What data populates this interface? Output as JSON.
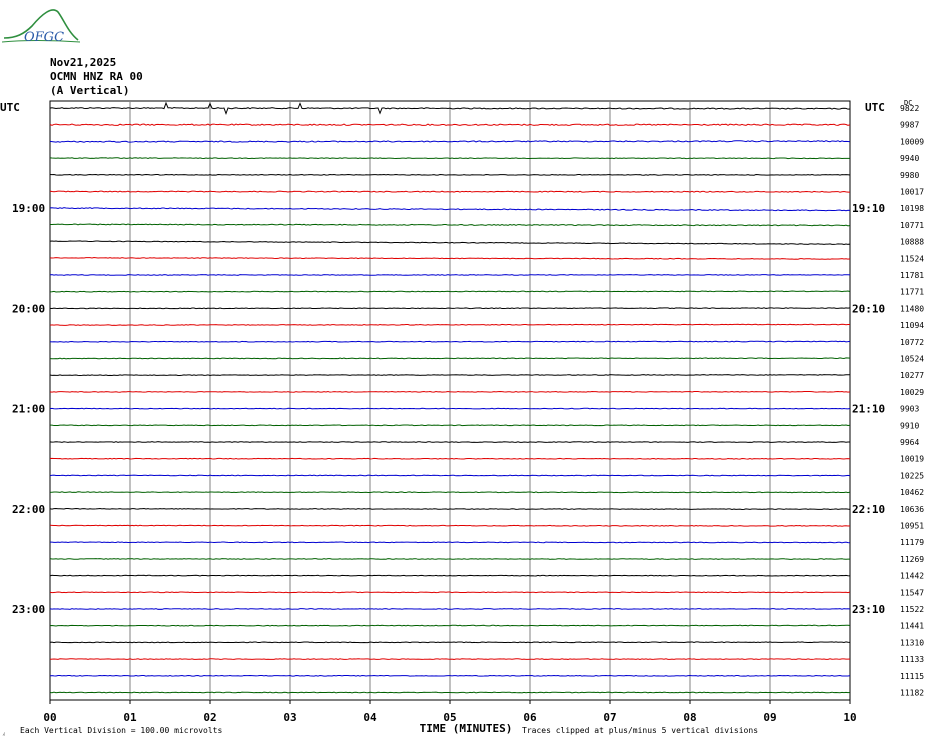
{
  "header": {
    "date": "Nov21,2025",
    "station": "OCMN HNZ RA 00",
    "component": "(A Vertical)"
  },
  "logo": {
    "text": "OFGC",
    "icon": "hill-wave-logo-icon"
  },
  "footer": {
    "scale_note": "Each Vertical Division =  100.00 microvolts",
    "clip_note": "Traces clipped at plus/minus 5 vertical divisions"
  },
  "chart_data": {
    "type": "line",
    "title": "",
    "xlabel": "TIME (MINUTES)",
    "left_axis_label": "UTC",
    "right_axis_label": "UTC",
    "dc_label": "DC",
    "x_ticks": [
      "00",
      "01",
      "02",
      "03",
      "04",
      "05",
      "06",
      "07",
      "08",
      "09",
      "10"
    ],
    "xlim": [
      0,
      10
    ],
    "left_time_labels": [
      {
        "row": 6,
        "label": "19:00"
      },
      {
        "row": 12,
        "label": "20:00"
      },
      {
        "row": 18,
        "label": "21:00"
      },
      {
        "row": 24,
        "label": "22:00"
      },
      {
        "row": 30,
        "label": "23:00"
      }
    ],
    "right_time_labels": [
      {
        "row": 6,
        "label": "19:10"
      },
      {
        "row": 12,
        "label": "20:10"
      },
      {
        "row": 18,
        "label": "21:10"
      },
      {
        "row": 24,
        "label": "22:10"
      },
      {
        "row": 30,
        "label": "23:10"
      }
    ],
    "trace_colors": [
      "#000000",
      "#e00000",
      "#0000d0",
      "#006000"
    ],
    "traces": [
      {
        "dc": "9822",
        "start": 0.0,
        "end": 0.7,
        "noise": 0.25
      },
      {
        "dc": "9987",
        "start": 0.0,
        "end": 0.1,
        "noise": 0.3
      },
      {
        "dc": "10009",
        "start": 0.3,
        "end": -0.2,
        "noise": 0.25
      },
      {
        "dc": "9940",
        "start": 0.0,
        "end": 0.2,
        "noise": 0.15
      },
      {
        "dc": "9980",
        "start": 0.0,
        "end": 0.1,
        "noise": 0.15
      },
      {
        "dc": "10017",
        "start": 0.0,
        "end": 0.3,
        "noise": 0.2
      },
      {
        "dc": "10198",
        "start": -0.2,
        "end": 2.2,
        "noise": 0.2
      },
      {
        "dc": "10771",
        "start": -0.5,
        "end": 0.5,
        "noise": 0.2
      },
      {
        "dc": "10888",
        "start": -0.5,
        "end": 2.6,
        "noise": 0.15
      },
      {
        "dc": "11524",
        "start": -0.5,
        "end": 0.7,
        "noise": 0.15
      },
      {
        "dc": "11781",
        "start": 0.0,
        "end": -0.1,
        "noise": 0.15
      },
      {
        "dc": "11771",
        "start": 0.0,
        "end": -0.4,
        "noise": 0.15
      },
      {
        "dc": "11480",
        "start": 0.0,
        "end": -0.3,
        "noise": 0.15
      },
      {
        "dc": "11094",
        "start": 0.0,
        "end": -0.6,
        "noise": 0.15
      },
      {
        "dc": "10772",
        "start": 0.0,
        "end": -0.3,
        "noise": 0.15
      },
      {
        "dc": "10524",
        "start": 0.0,
        "end": -0.3,
        "noise": 0.15
      },
      {
        "dc": "10277",
        "start": 0.0,
        "end": -0.3,
        "noise": 0.15
      },
      {
        "dc": "10029",
        "start": 0.0,
        "end": -0.1,
        "noise": 0.15
      },
      {
        "dc": "9903",
        "start": 0.0,
        "end": 0.0,
        "noise": 0.15
      },
      {
        "dc": "9910",
        "start": 0.0,
        "end": 0.0,
        "noise": 0.15
      },
      {
        "dc": "9964",
        "start": 0.0,
        "end": 0.1,
        "noise": 0.15
      },
      {
        "dc": "10019",
        "start": 0.0,
        "end": 0.1,
        "noise": 0.15
      },
      {
        "dc": "10225",
        "start": 0.0,
        "end": 0.2,
        "noise": 0.15
      },
      {
        "dc": "10462",
        "start": 0.0,
        "end": 0.3,
        "noise": 0.15
      },
      {
        "dc": "10636",
        "start": 0.0,
        "end": 0.4,
        "noise": 0.15
      },
      {
        "dc": "10951",
        "start": 0.0,
        "end": 0.4,
        "noise": 0.15
      },
      {
        "dc": "11179",
        "start": 0.0,
        "end": 0.3,
        "noise": 0.15
      },
      {
        "dc": "11269",
        "start": 0.0,
        "end": 0.2,
        "noise": 0.15
      },
      {
        "dc": "11442",
        "start": 0.0,
        "end": 0.1,
        "noise": 0.15
      },
      {
        "dc": "11547",
        "start": 0.0,
        "end": 0.0,
        "noise": 0.15
      },
      {
        "dc": "11522",
        "start": 0.0,
        "end": -0.1,
        "noise": 0.15
      },
      {
        "dc": "11441",
        "start": 0.0,
        "end": -0.2,
        "noise": 0.15
      },
      {
        "dc": "11310",
        "start": 0.0,
        "end": -0.2,
        "noise": 0.15
      },
      {
        "dc": "11133",
        "start": 0.0,
        "end": 0.0,
        "noise": 0.15
      },
      {
        "dc": "11115",
        "start": 0.0,
        "end": 0.0,
        "noise": 0.15
      },
      {
        "dc": "11182",
        "start": 0.0,
        "end": 0.0,
        "noise": 0.15
      }
    ]
  }
}
